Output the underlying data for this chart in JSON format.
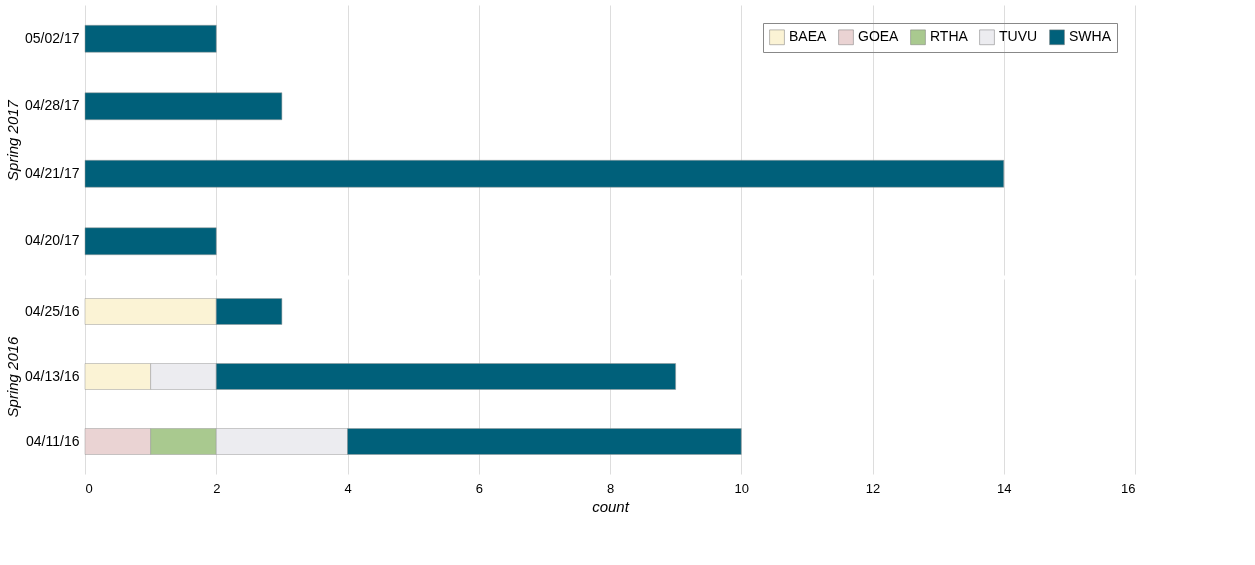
{
  "chart_data": [
    {
      "type": "bar",
      "orientation": "horizontal",
      "stacked": true,
      "ylabel": "Spring 2017",
      "categories": [
        "05/02/17",
        "04/28/17",
        "04/21/17",
        "04/20/17"
      ],
      "xlim": [
        0,
        16
      ],
      "xticks": [
        0,
        2,
        4,
        6,
        8,
        10,
        12,
        14,
        16
      ],
      "grid": "x",
      "legend": "top right",
      "tick_labels": "y",
      "series": [
        {
          "name": "BAEA",
          "color": "#fbf3d5",
          "values": [
            null,
            null,
            null,
            null
          ]
        },
        {
          "name": "GOEA",
          "color": "#ead3d3",
          "values": [
            null,
            null,
            null,
            null
          ]
        },
        {
          "name": "RTHA",
          "color": "#a9c98f",
          "values": [
            null,
            null,
            null,
            null
          ]
        },
        {
          "name": "TUVU",
          "color": "#ececf0",
          "values": [
            null,
            null,
            null,
            null
          ]
        },
        {
          "name": "SWHA",
          "color": "#00607a",
          "values": [
            2,
            3,
            14,
            2
          ]
        }
      ]
    },
    {
      "type": "bar",
      "orientation": "horizontal",
      "stacked": true,
      "ylabel": "Spring 2016",
      "xlabel": "count",
      "categories": [
        "04/25/16",
        "04/13/16",
        "04/11/16"
      ],
      "xlim": [
        0,
        16
      ],
      "xticks": [
        0,
        2,
        4,
        6,
        8,
        10,
        12,
        14,
        16
      ],
      "grid": "x",
      "series": [
        {
          "color": "#fbf3d5",
          "values": [
            2,
            1,
            null
          ]
        },
        {
          "color": "#ead3d3",
          "values": [
            null,
            null,
            1
          ]
        },
        {
          "color": "#a9c98f",
          "values": [
            null,
            null,
            1
          ]
        },
        {
          "color": "#ececf0",
          "values": [
            null,
            1,
            2
          ]
        },
        {
          "color": "#00607a",
          "values": [
            1,
            7,
            6
          ]
        }
      ]
    }
  ]
}
